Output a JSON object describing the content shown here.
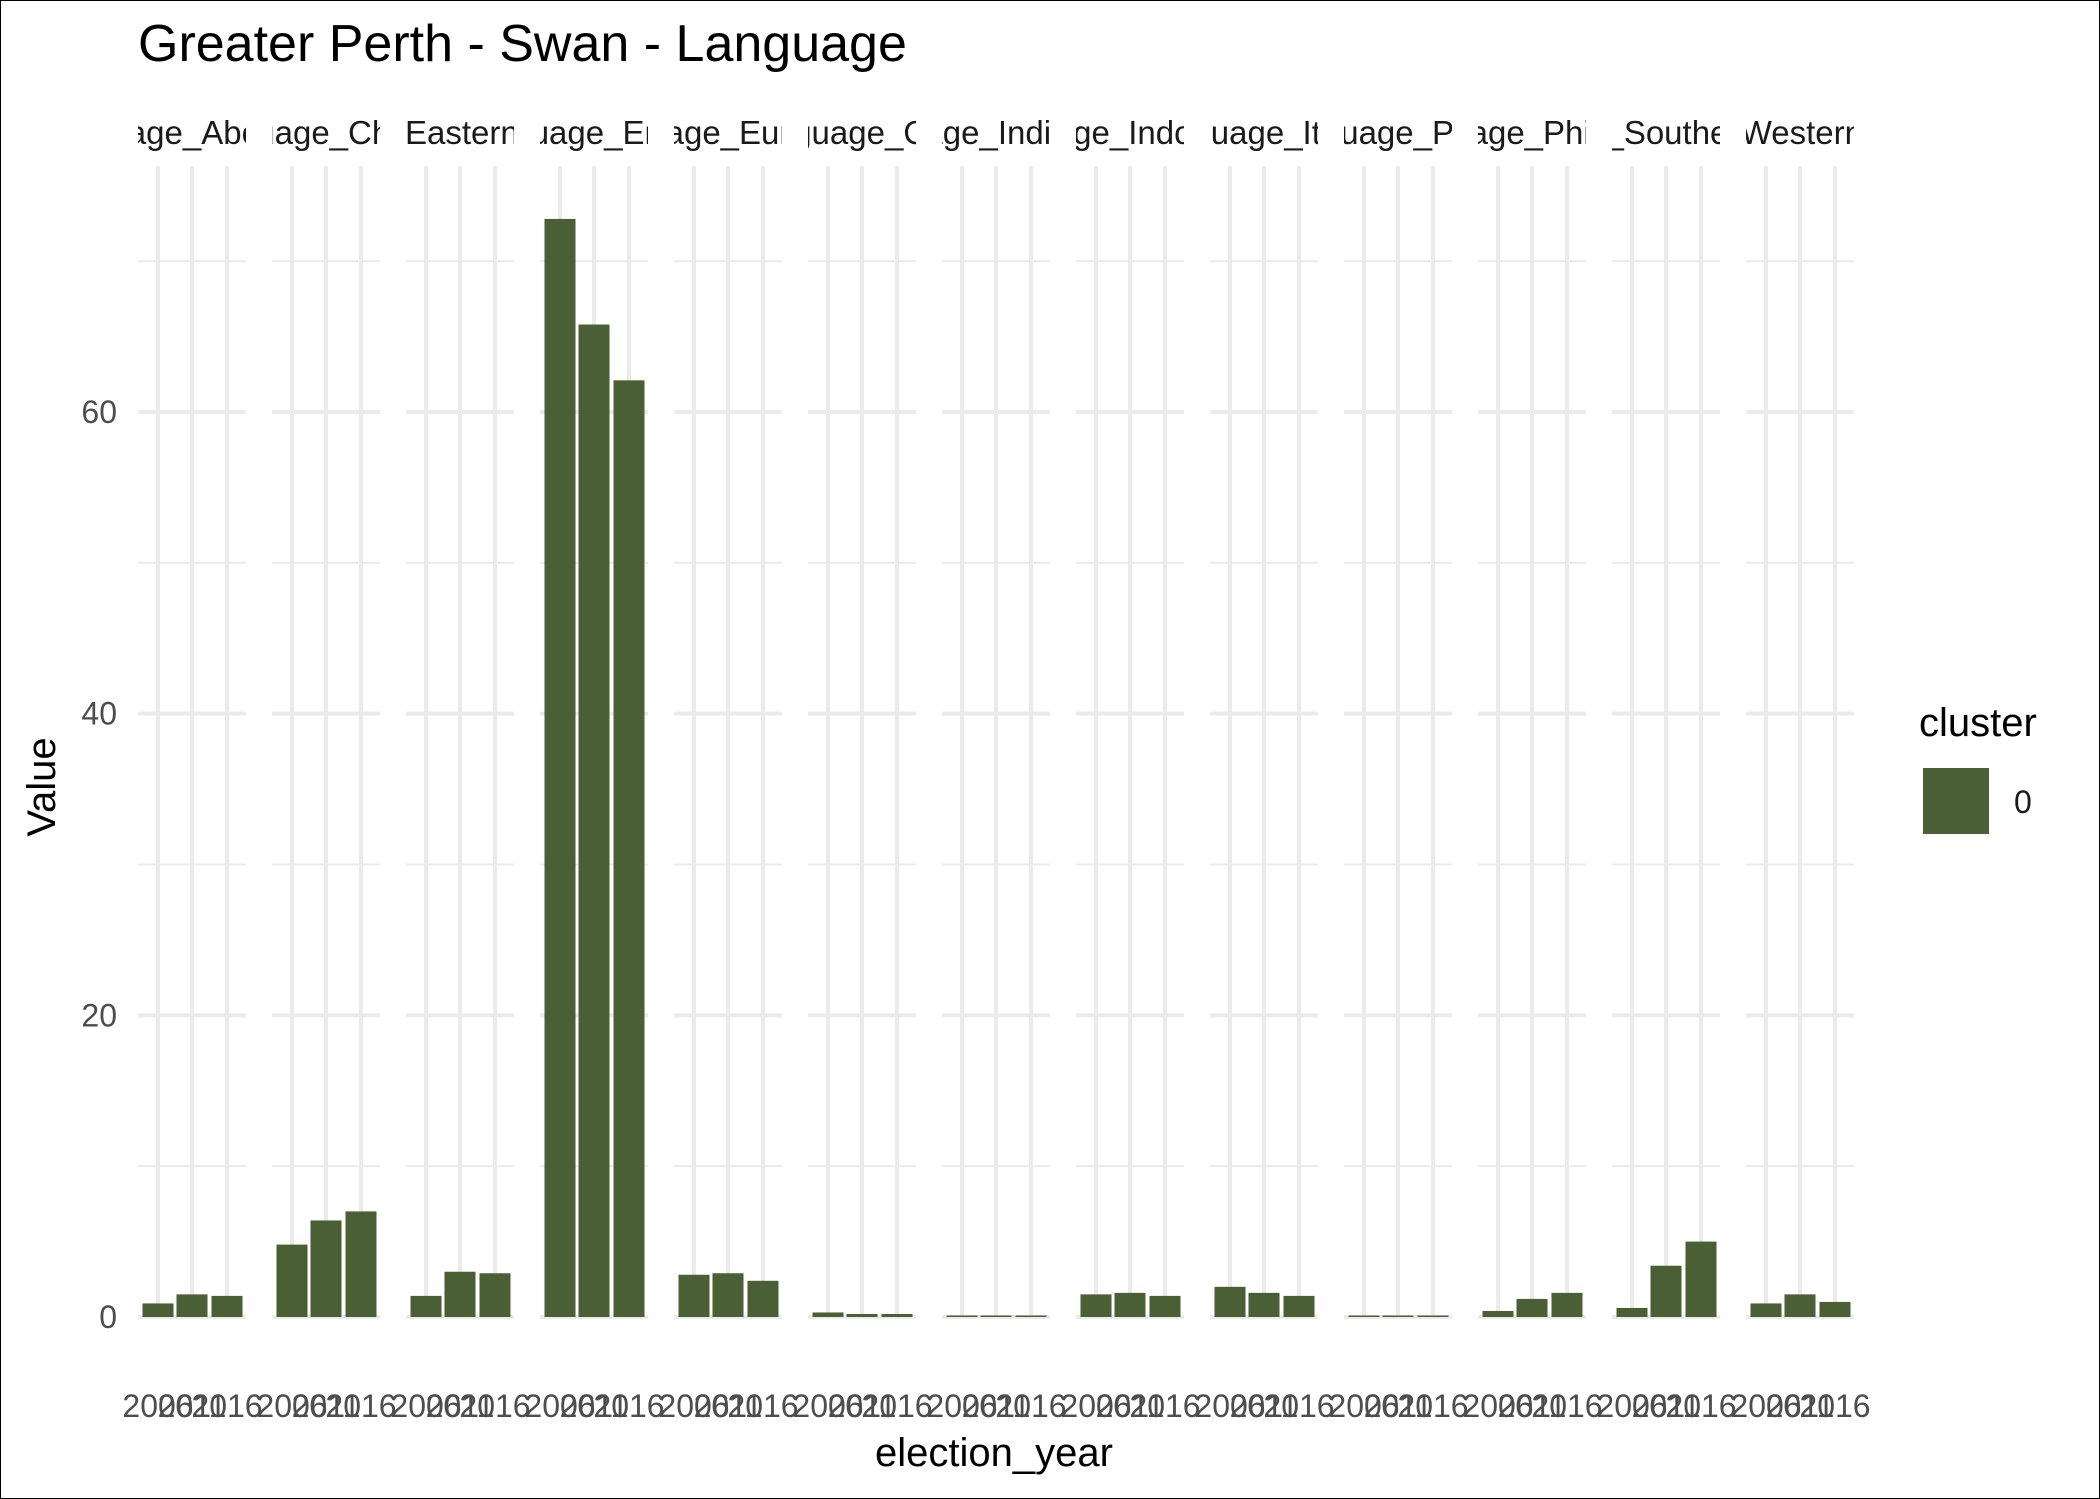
{
  "chart_data": {
    "type": "bar",
    "title": "Greater Perth - Swan - Language",
    "xlabel": "election_year",
    "ylabel": "Value",
    "ylim": [
      0,
      73
    ],
    "yticks": [
      0,
      20,
      40,
      60
    ],
    "grid": true,
    "legend": {
      "title": "cluster",
      "placement": "right",
      "entries": [
        {
          "label": "0",
          "color": "#4a5f33"
        }
      ]
    },
    "categories": [
      "2006",
      "2011",
      "2016"
    ],
    "facets": [
      {
        "label": "Language_Aboriginal",
        "values": [
          0.9,
          1.5,
          1.4
        ]
      },
      {
        "label": "Language_Chinese",
        "values": [
          4.8,
          6.4,
          7.0
        ]
      },
      {
        "label": "Language_Eastern_European",
        "values": [
          1.4,
          3.0,
          2.9
        ]
      },
      {
        "label": "Language_English",
        "values": [
          72.8,
          65.8,
          62.1
        ]
      },
      {
        "label": "Language_European",
        "values": [
          2.8,
          2.9,
          2.4
        ]
      },
      {
        "label": "Language_Other",
        "values": [
          0.3,
          0.2,
          0.2
        ]
      },
      {
        "label": "Language_Indigenous",
        "values": [
          0.1,
          0.1,
          0.1
        ]
      },
      {
        "label": "Language_Indo_Aryan",
        "values": [
          1.5,
          1.6,
          1.4
        ]
      },
      {
        "label": "Language_Italian",
        "values": [
          2.0,
          1.6,
          1.4
        ]
      },
      {
        "label": "Language_Pacific",
        "values": [
          0.05,
          0.05,
          0.05
        ]
      },
      {
        "label": "Language_Philippine",
        "values": [
          0.4,
          1.2,
          1.6
        ]
      },
      {
        "label": "Language_Southeast_Asian",
        "values": [
          0.6,
          3.4,
          5.0
        ]
      },
      {
        "label": "Language_Western_European",
        "values": [
          0.9,
          1.5,
          1.0
        ]
      }
    ],
    "colors": {
      "bar": "#4a5f33",
      "grid": "#ebebeb"
    }
  }
}
